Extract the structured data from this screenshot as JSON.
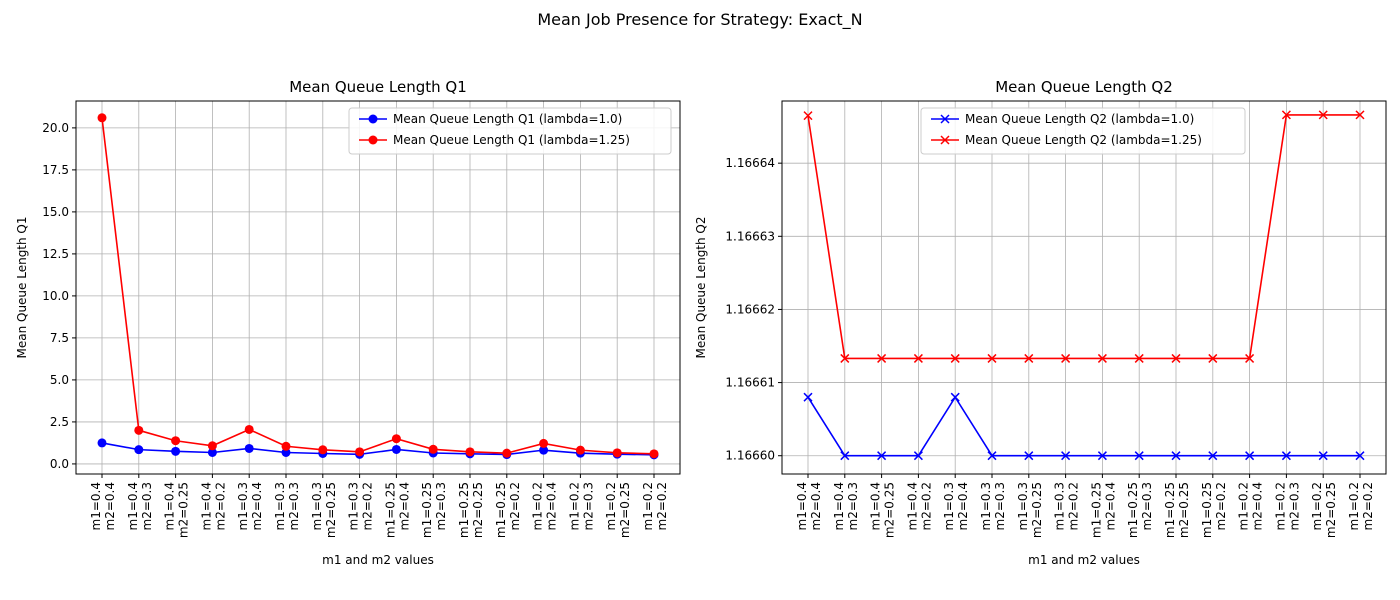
{
  "figure": {
    "suptitle": "Mean Job Presence for Strategy: Exact_N"
  },
  "chart_data": [
    {
      "type": "line",
      "title": "Mean Queue Length Q1",
      "xlabel": "m1 and m2 values",
      "ylabel": "Mean Queue Length Q1",
      "ylim": [
        -0.6,
        21.6
      ],
      "yticks": [
        0.0,
        2.5,
        5.0,
        7.5,
        10.0,
        12.5,
        15.0,
        17.5,
        20.0
      ],
      "ytick_labels": [
        "0.0",
        "2.5",
        "5.0",
        "7.5",
        "10.0",
        "12.5",
        "15.0",
        "17.5",
        "20.0"
      ],
      "grid": true,
      "legend_position": "top-right",
      "categories": [
        [
          "m1=0.4",
          "m2=0.4"
        ],
        [
          "m1=0.4",
          "m2=0.3"
        ],
        [
          "m1=0.4",
          "m2=0.25"
        ],
        [
          "m1=0.4",
          "m2=0.2"
        ],
        [
          "m1=0.3",
          "m2=0.4"
        ],
        [
          "m1=0.3",
          "m2=0.3"
        ],
        [
          "m1=0.3",
          "m2=0.25"
        ],
        [
          "m1=0.3",
          "m2=0.2"
        ],
        [
          "m1=0.25",
          "m2=0.4"
        ],
        [
          "m1=0.25",
          "m2=0.3"
        ],
        [
          "m1=0.25",
          "m2=0.25"
        ],
        [
          "m1=0.25",
          "m2=0.2"
        ],
        [
          "m1=0.2",
          "m2=0.4"
        ],
        [
          "m1=0.2",
          "m2=0.3"
        ],
        [
          "m1=0.2",
          "m2=0.25"
        ],
        [
          "m1=0.2",
          "m2=0.2"
        ]
      ],
      "series": [
        {
          "name": "Mean Queue Length Q1 (lambda=1.0)",
          "color": "#0000ff",
          "marker": "circle",
          "values": [
            1.25,
            0.85,
            0.75,
            0.68,
            0.92,
            0.68,
            0.62,
            0.57,
            0.86,
            0.65,
            0.6,
            0.56,
            0.82,
            0.64,
            0.58,
            0.54
          ]
        },
        {
          "name": "Mean Queue Length Q1 (lambda=1.25)",
          "color": "#ff0000",
          "marker": "circle",
          "values": [
            20.6,
            2.0,
            1.38,
            1.08,
            2.05,
            1.05,
            0.84,
            0.72,
            1.5,
            0.87,
            0.72,
            0.64,
            1.22,
            0.82,
            0.66,
            0.6
          ]
        }
      ]
    },
    {
      "type": "line",
      "title": "Mean Queue Length Q2",
      "xlabel": "m1 and m2 values",
      "ylabel": "Mean Queue Length Q2",
      "ylim": [
        1.1665975,
        1.1666485
      ],
      "yticks": [
        1.1666,
        1.16661,
        1.16662,
        1.16663,
        1.16664
      ],
      "ytick_labels": [
        "1.16660",
        "1.16661",
        "1.16662",
        "1.16663",
        "1.16664"
      ],
      "grid": true,
      "legend_position": "top-center",
      "categories": [
        [
          "m1=0.4",
          "m2=0.4"
        ],
        [
          "m1=0.4",
          "m2=0.3"
        ],
        [
          "m1=0.4",
          "m2=0.25"
        ],
        [
          "m1=0.4",
          "m2=0.2"
        ],
        [
          "m1=0.3",
          "m2=0.4"
        ],
        [
          "m1=0.3",
          "m2=0.3"
        ],
        [
          "m1=0.3",
          "m2=0.25"
        ],
        [
          "m1=0.3",
          "m2=0.2"
        ],
        [
          "m1=0.25",
          "m2=0.4"
        ],
        [
          "m1=0.25",
          "m2=0.3"
        ],
        [
          "m1=0.25",
          "m2=0.25"
        ],
        [
          "m1=0.25",
          "m2=0.2"
        ],
        [
          "m1=0.2",
          "m2=0.4"
        ],
        [
          "m1=0.2",
          "m2=0.3"
        ],
        [
          "m1=0.2",
          "m2=0.25"
        ],
        [
          "m1=0.2",
          "m2=0.2"
        ]
      ],
      "series": [
        {
          "name": "Mean Queue Length Q2 (lambda=1.0)",
          "color": "#0000ff",
          "marker": "x",
          "values": [
            1.166608,
            1.1666,
            1.1666,
            1.1666,
            1.166608,
            1.1666,
            1.1666,
            1.1666,
            1.1666,
            1.1666,
            1.1666,
            1.1666,
            1.1666,
            1.1666,
            1.1666,
            1.1666
          ]
        },
        {
          "name": "Mean Queue Length Q2 (lambda=1.25)",
          "color": "#ff0000",
          "marker": "x",
          "values": [
            1.1666465,
            1.1666133,
            1.1666133,
            1.1666133,
            1.1666133,
            1.1666133,
            1.1666133,
            1.1666133,
            1.1666133,
            1.1666133,
            1.1666133,
            1.1666133,
            1.1666133,
            1.1666466,
            1.1666466,
            1.1666466
          ]
        }
      ]
    }
  ]
}
